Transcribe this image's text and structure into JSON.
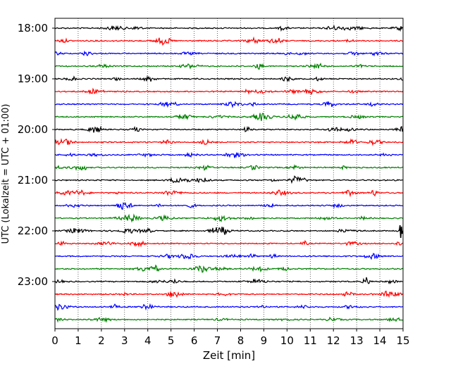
{
  "chart_data": {
    "type": "line",
    "title": "",
    "xlabel": "Zeit  [min]",
    "ylabel": "UTC (Lokalzeit = UTC + 01:00)",
    "xlim": [
      0,
      15
    ],
    "x_ticks": [
      "0",
      "1",
      "2",
      "3",
      "4",
      "5",
      "6",
      "7",
      "8",
      "9",
      "10",
      "11",
      "12",
      "13",
      "14",
      "15"
    ],
    "y_ticks": [
      "18:00",
      "19:00",
      "20:00",
      "21:00",
      "22:00",
      "23:00"
    ],
    "grid": "vertical-dotted",
    "trace_start": "18:00",
    "trace_interval_minutes": 15,
    "trace_count": 24,
    "trace_colors": [
      "#000000",
      "#ff0000",
      "#0000ff",
      "#008000"
    ],
    "events": [
      {
        "trace": 16,
        "minute": 14.9,
        "note": "large spike"
      }
    ]
  }
}
